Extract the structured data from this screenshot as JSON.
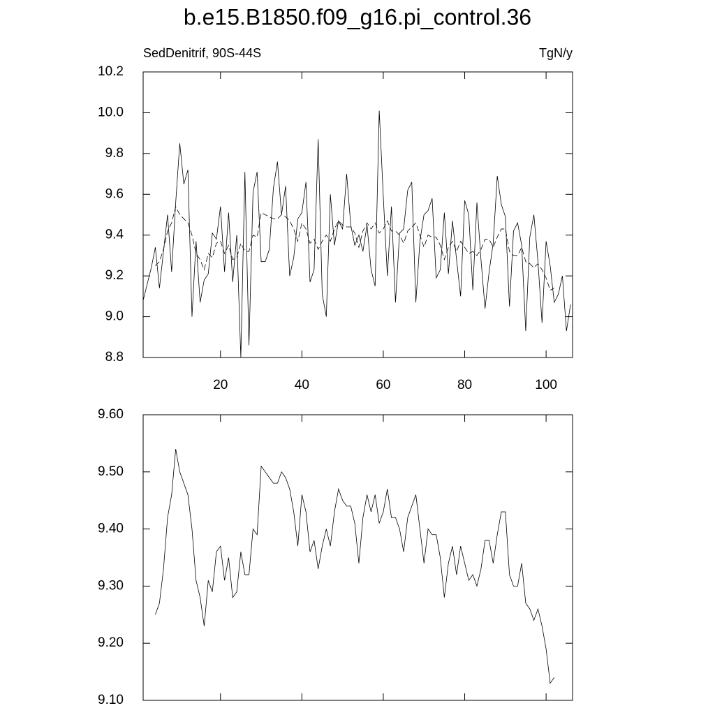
{
  "chart_data": [
    {
      "type": "line",
      "title": "b.e15.B1850.f09_g16.pi_control.36",
      "left_string": "SedDenitrif, 90S-44S",
      "right_string": "TgN/y",
      "x": [
        1,
        2,
        3,
        4,
        5,
        6,
        7,
        8,
        9,
        10,
        11,
        12,
        13,
        14,
        15,
        16,
        17,
        18,
        19,
        20,
        21,
        22,
        23,
        24,
        25,
        26,
        27,
        28,
        29,
        30,
        31,
        32,
        33,
        34,
        35,
        36,
        37,
        38,
        39,
        40,
        41,
        42,
        43,
        44,
        45,
        46,
        47,
        48,
        49,
        50,
        51,
        52,
        53,
        54,
        55,
        56,
        57,
        58,
        59,
        60,
        61,
        62,
        63,
        64,
        65,
        66,
        67,
        68,
        69,
        70,
        71,
        72,
        73,
        74,
        75,
        76,
        77,
        78,
        79,
        80,
        81,
        82,
        83,
        84,
        85,
        86,
        87,
        88,
        89,
        90,
        91,
        92,
        93,
        94,
        95,
        96,
        97,
        98,
        99,
        100,
        101,
        102,
        103,
        104,
        105,
        106
      ],
      "series": [
        {
          "color": "#000000",
          "line_style": "solid",
          "values": [
            9.08,
            9.16,
            9.24,
            9.34,
            9.14,
            9.32,
            9.5,
            9.22,
            9.56,
            9.85,
            9.65,
            9.72,
            9.0,
            9.37,
            9.07,
            9.18,
            9.21,
            9.41,
            9.38,
            9.54,
            9.22,
            9.51,
            9.17,
            9.4,
            8.8,
            9.71,
            8.86,
            9.61,
            9.71,
            9.27,
            9.27,
            9.33,
            9.63,
            9.76,
            9.5,
            9.64,
            9.2,
            9.29,
            9.48,
            9.51,
            9.66,
            9.17,
            9.23,
            9.87,
            9.11,
            9.0,
            9.6,
            9.35,
            9.47,
            9.43,
            9.7,
            9.45,
            9.35,
            9.4,
            9.32,
            9.45,
            9.23,
            9.15,
            10.01,
            9.59,
            9.2,
            9.54,
            9.07,
            9.41,
            9.43,
            9.62,
            9.66,
            9.07,
            9.37,
            9.5,
            9.52,
            9.58,
            9.19,
            9.23,
            9.51,
            9.21,
            9.47,
            9.28,
            9.1,
            9.57,
            9.5,
            9.13,
            9.56,
            9.28,
            9.04,
            9.22,
            9.36,
            9.69,
            9.55,
            9.49,
            9.05,
            9.42,
            9.46,
            9.35,
            8.93,
            9.39,
            9.5,
            9.27,
            8.97,
            9.37,
            9.25,
            9.07,
            9.11,
            9.2,
            8.93,
            9.06
          ]
        },
        {
          "color": "#000000",
          "line_style": "dashed",
          "values": [
            null,
            null,
            null,
            9.25,
            9.27,
            9.33,
            9.42,
            9.46,
            9.54,
            9.5,
            9.48,
            9.46,
            9.4,
            9.31,
            9.28,
            9.23,
            9.31,
            9.29,
            9.36,
            9.37,
            9.31,
            9.35,
            9.28,
            9.29,
            9.36,
            9.32,
            9.32,
            9.4,
            9.39,
            9.51,
            9.5,
            9.49,
            9.48,
            9.48,
            9.5,
            9.49,
            9.47,
            9.43,
            9.37,
            9.46,
            9.43,
            9.36,
            9.38,
            9.33,
            9.37,
            9.4,
            9.37,
            9.43,
            9.47,
            9.45,
            9.44,
            9.44,
            9.41,
            9.34,
            9.42,
            9.46,
            9.43,
            9.46,
            9.41,
            9.43,
            9.47,
            9.42,
            9.42,
            9.4,
            9.36,
            9.42,
            9.44,
            9.46,
            9.4,
            9.34,
            9.4,
            9.39,
            9.39,
            9.35,
            9.28,
            9.34,
            9.37,
            9.32,
            9.37,
            9.34,
            9.31,
            9.32,
            9.3,
            9.33,
            9.38,
            9.38,
            9.34,
            9.39,
            9.43,
            9.43,
            9.32,
            9.3,
            9.3,
            9.34,
            9.27,
            9.26,
            9.24,
            9.26,
            9.23,
            9.19,
            9.13,
            9.14,
            null,
            null,
            null,
            null
          ]
        }
      ],
      "xlim": [
        1,
        106.5
      ],
      "xticks": [
        20,
        40,
        60,
        80,
        100
      ],
      "ylim": [
        8.8,
        10.2
      ],
      "yticks": [
        8.8,
        {
          "value": 9.0,
          "label": "9.0"
        },
        9.2,
        9.4,
        9.6,
        9.8,
        {
          "value": 10.0,
          "label": "10.0"
        },
        10.2
      ]
    },
    {
      "type": "line",
      "x": [
        4,
        5,
        6,
        7,
        8,
        9,
        10,
        11,
        12,
        13,
        14,
        15,
        16,
        17,
        18,
        19,
        20,
        21,
        22,
        23,
        24,
        25,
        26,
        27,
        28,
        29,
        30,
        31,
        32,
        33,
        34,
        35,
        36,
        37,
        38,
        39,
        40,
        41,
        42,
        43,
        44,
        45,
        46,
        47,
        48,
        49,
        50,
        51,
        52,
        53,
        54,
        55,
        56,
        57,
        58,
        59,
        60,
        61,
        62,
        63,
        64,
        65,
        66,
        67,
        68,
        69,
        70,
        71,
        72,
        73,
        74,
        75,
        76,
        77,
        78,
        79,
        80,
        81,
        82,
        83,
        84,
        85,
        86,
        87,
        88,
        89,
        90,
        91,
        92,
        93,
        94,
        95,
        96,
        97,
        98,
        99,
        100,
        101,
        102
      ],
      "series": [
        {
          "color": "#000000",
          "line_style": "solid",
          "values": [
            9.25,
            9.27,
            9.33,
            9.42,
            9.46,
            9.54,
            9.5,
            9.48,
            9.46,
            9.4,
            9.31,
            9.28,
            9.23,
            9.31,
            9.29,
            9.36,
            9.37,
            9.31,
            9.35,
            9.28,
            9.29,
            9.36,
            9.32,
            9.32,
            9.4,
            9.39,
            9.51,
            9.5,
            9.49,
            9.48,
            9.48,
            9.5,
            9.49,
            9.47,
            9.43,
            9.37,
            9.46,
            9.43,
            9.36,
            9.38,
            9.33,
            9.37,
            9.4,
            9.37,
            9.43,
            9.47,
            9.45,
            9.44,
            9.44,
            9.41,
            9.34,
            9.42,
            9.46,
            9.43,
            9.46,
            9.41,
            9.43,
            9.47,
            9.42,
            9.42,
            9.4,
            9.36,
            9.42,
            9.44,
            9.46,
            9.4,
            9.34,
            9.4,
            9.39,
            9.39,
            9.35,
            9.28,
            9.34,
            9.37,
            9.32,
            9.37,
            9.34,
            9.31,
            9.32,
            9.3,
            9.33,
            9.38,
            9.38,
            9.34,
            9.39,
            9.43,
            9.43,
            9.32,
            9.3,
            9.3,
            9.34,
            9.27,
            9.26,
            9.24,
            9.26,
            9.23,
            9.19,
            9.13,
            9.14
          ]
        }
      ],
      "xlim": [
        1,
        106.5
      ],
      "xticks": [
        20,
        40,
        60,
        80,
        100
      ],
      "ylim": [
        9.1,
        9.6
      ],
      "yticks": [
        {
          "value": 9.1,
          "label": "9.10"
        },
        {
          "value": 9.2,
          "label": "9.20"
        },
        {
          "value": 9.3,
          "label": "9.30"
        },
        {
          "value": 9.4,
          "label": "9.40"
        },
        {
          "value": 9.5,
          "label": "9.50"
        },
        {
          "value": 9.6,
          "label": "9.60"
        }
      ],
      "show_xtick_labels": false
    }
  ]
}
